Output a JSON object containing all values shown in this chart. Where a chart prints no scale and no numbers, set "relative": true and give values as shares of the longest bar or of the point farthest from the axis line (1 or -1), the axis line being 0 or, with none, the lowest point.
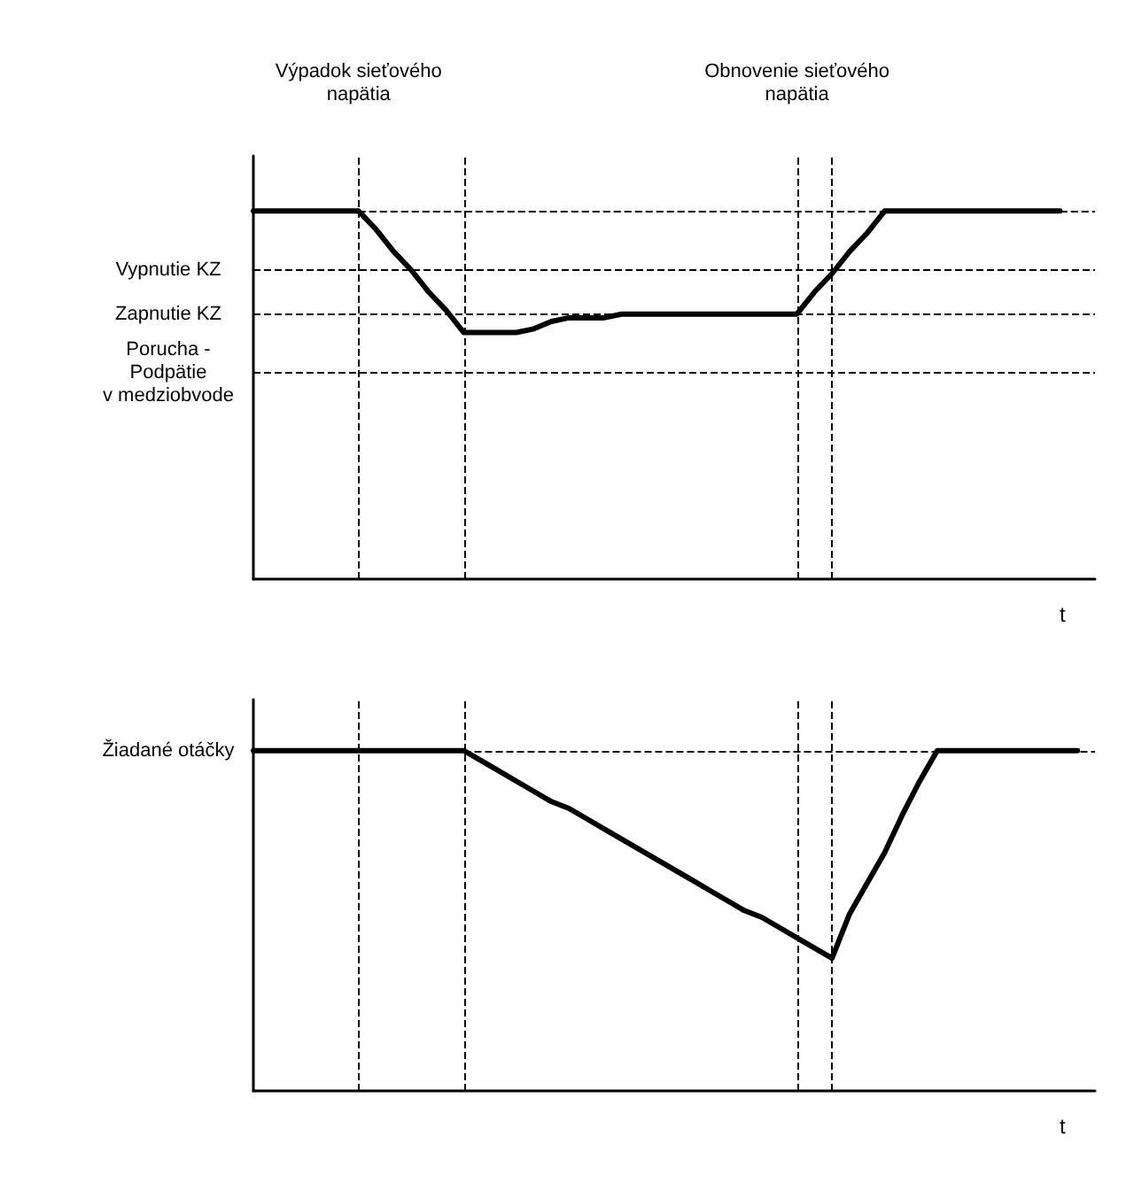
{
  "chart_data": [
    {
      "type": "line",
      "relative": true,
      "xlabel": "t",
      "tick_labels": false,
      "marker": "none",
      "line_style": "solid",
      "categories": [
        null,
        null,
        null,
        null,
        null,
        null,
        null,
        null,
        null,
        null,
        null,
        null,
        null,
        null,
        null,
        null,
        null,
        null,
        null,
        null,
        null,
        null,
        null,
        null,
        null,
        null,
        null,
        null,
        null,
        null,
        null,
        null,
        null,
        null,
        null,
        null,
        null,
        null,
        null,
        null,
        null,
        null,
        null,
        null,
        null,
        null,
        null,
        null,
        null
      ],
      "series": [
        {
          "color": "#000000",
          "values": [
            1,
            1,
            1,
            1,
            1,
            1,
            1,
            0.95,
            0.89,
            0.84,
            0.78,
            0.73,
            0.67,
            0.67,
            0.67,
            0.67,
            0.68,
            0.7,
            0.71,
            0.71,
            0.71,
            0.72,
            0.72,
            0.72,
            0.72,
            0.72,
            0.72,
            0.72,
            0.72,
            0.72,
            0.72,
            0.72,
            0.78,
            0.83,
            0.89,
            0.94,
            1,
            1,
            1,
            1,
            1,
            1,
            1,
            1,
            1,
            1,
            1,
            null,
            null
          ]
        }
      ],
      "ref_lines": [
        {
          "axis": "y",
          "value": 0.84,
          "label": "Vypnutie KZ",
          "line_style": "dashed",
          "color": "#000000"
        },
        {
          "axis": "y",
          "value": 0.72,
          "label": "Zapnutie KZ",
          "line_style": "dashed",
          "color": "#000000"
        },
        {
          "axis": "y",
          "value": 0.56,
          "label": "Porucha -\nPodpätie\nv medziobvode",
          "line_style": "dashed",
          "color": "#000000"
        }
      ],
      "grid": "x",
      "annotations": [
        "Výpadok sieťového\nnapätia",
        "Obnovenie sieťového\nnapätia"
      ]
    },
    {
      "type": "line",
      "relative": true,
      "xlabel": "t",
      "tick_labels": false,
      "marker": "none",
      "line_style": "solid",
      "categories": [
        null,
        null,
        null,
        null,
        null,
        null,
        null,
        null,
        null,
        null,
        null,
        null,
        null,
        null,
        null,
        null,
        null,
        null,
        null,
        null,
        null,
        null,
        null,
        null,
        null,
        null,
        null,
        null,
        null,
        null,
        null,
        null,
        null,
        null,
        null,
        null,
        null,
        null,
        null,
        null,
        null,
        null,
        null,
        null,
        null,
        null,
        null,
        null,
        null
      ],
      "series": [
        {
          "color": "#000000",
          "values": [
            1,
            1,
            1,
            1,
            1,
            1,
            1,
            1,
            1,
            1,
            1,
            1,
            1,
            0.97,
            0.94,
            0.91,
            0.88,
            0.85,
            0.83,
            0.8,
            0.77,
            0.74,
            0.71,
            0.68,
            0.65,
            0.62,
            0.59,
            0.56,
            0.53,
            0.51,
            0.48,
            0.45,
            0.42,
            0.39,
            0.52,
            0.61,
            0.7,
            0.81,
            0.91,
            1,
            1,
            1,
            1,
            1,
            1,
            1,
            1,
            1,
            null
          ]
        }
      ],
      "grid": "x",
      "annotations": [
        "Žiadané otáčky"
      ]
    }
  ]
}
